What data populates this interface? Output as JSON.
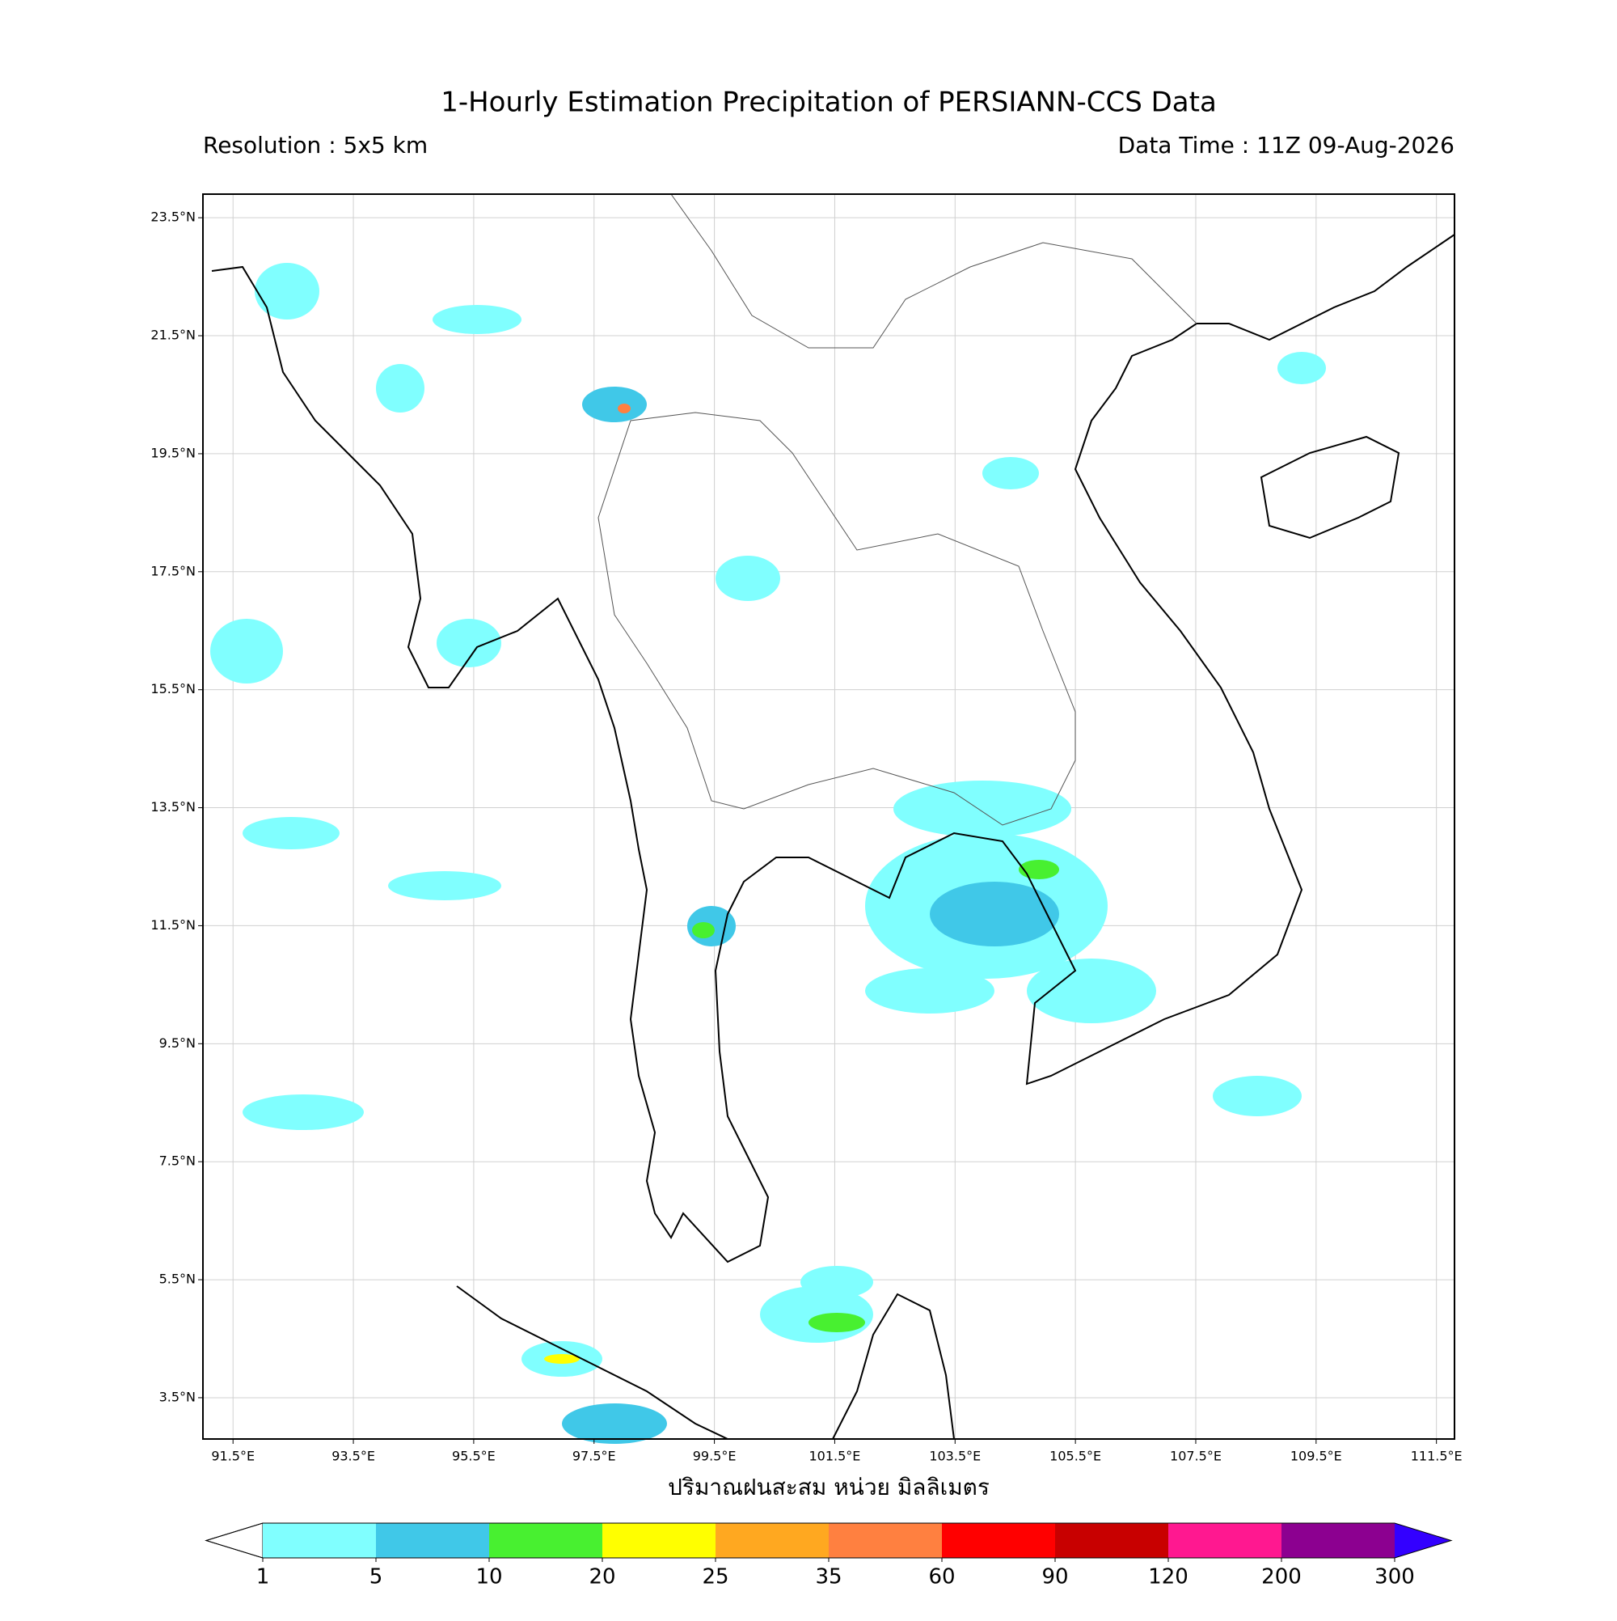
{
  "header": {
    "title": "1-Hourly Estimation Precipitation of PERSIANN-CCS Data",
    "resolution": "Resolution : 5x5 km",
    "data_time": "Data Time : 11Z 09-Aug-2026"
  },
  "map": {
    "lonlim": [
      91.0,
      111.8
    ],
    "latlim": [
      2.8,
      23.9
    ],
    "lon_ticks": [
      {
        "value": 91.5,
        "label": "91.5°E"
      },
      {
        "value": 93.5,
        "label": "93.5°E"
      },
      {
        "value": 95.5,
        "label": "95.5°E"
      },
      {
        "value": 97.5,
        "label": "97.5°E"
      },
      {
        "value": 99.5,
        "label": "99.5°E"
      },
      {
        "value": 101.5,
        "label": "101.5°E"
      },
      {
        "value": 103.5,
        "label": "103.5°E"
      },
      {
        "value": 105.5,
        "label": "105.5°E"
      },
      {
        "value": 107.5,
        "label": "107.5°E"
      },
      {
        "value": 109.5,
        "label": "109.5°E"
      },
      {
        "value": 111.5,
        "label": "111.5°E"
      }
    ],
    "lat_ticks": [
      {
        "value": 23.5,
        "label": "23.5°N"
      },
      {
        "value": 21.5,
        "label": "21.5°N"
      },
      {
        "value": 19.5,
        "label": "19.5°N"
      },
      {
        "value": 17.5,
        "label": "17.5°N"
      },
      {
        "value": 15.5,
        "label": "15.5°N"
      },
      {
        "value": 13.5,
        "label": "13.5°N"
      },
      {
        "value": 11.5,
        "label": "11.5°N"
      },
      {
        "value": 9.5,
        "label": "9.5°N"
      },
      {
        "value": 7.5,
        "label": "7.5°N"
      },
      {
        "value": 5.5,
        "label": "5.5°N"
      },
      {
        "value": 3.5,
        "label": "3.5°N"
      }
    ],
    "grid": true,
    "xlabel": "ปริมาณฝนสะสม หน่วย มิลลิเมตร"
  },
  "colorbar": {
    "levels": [
      1,
      5,
      10,
      20,
      25,
      35,
      60,
      90,
      120,
      200,
      300
    ],
    "colors": [
      "#80ffff",
      "#40c8e8",
      "#48f030",
      "#ffff00",
      "#ffa820",
      "#ff8040",
      "#ff0000",
      "#c80000",
      "#ff1890",
      "#8c0090"
    ],
    "under_color": "#ffffff",
    "over_color": "#3300ff"
  }
}
